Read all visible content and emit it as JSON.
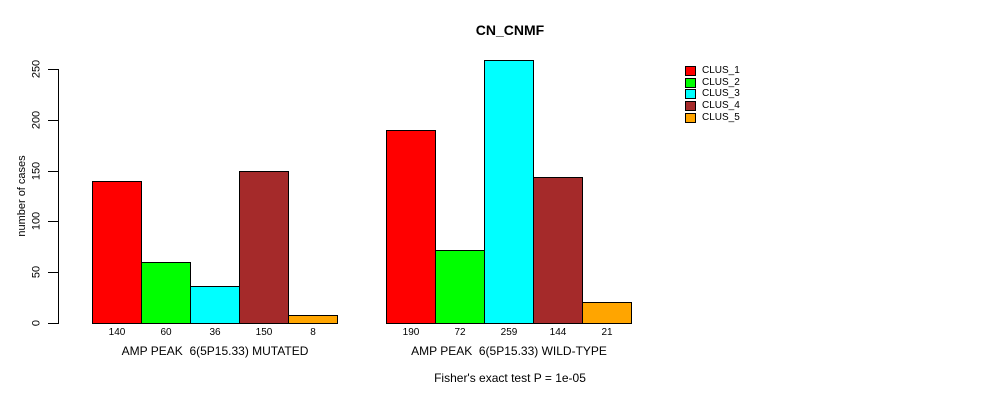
{
  "title": "CN_CNMF",
  "subtitle": "Fisher's exact test P = 1e-05",
  "y_axis": {
    "label": "number of cases",
    "ticks": [
      0,
      50,
      100,
      150,
      200,
      250
    ],
    "max": 250
  },
  "legend": {
    "position": "right",
    "entries": [
      {
        "label": "CLUS_1",
        "color": "#FF0000"
      },
      {
        "label": "CLUS_2",
        "color": "#00FF00"
      },
      {
        "label": "CLUS_3",
        "color": "#00FFFF"
      },
      {
        "label": "CLUS_4",
        "color": "#A52A2A"
      },
      {
        "label": "CLUS_5",
        "color": "#FFA500"
      }
    ]
  },
  "chart_data": {
    "type": "bar",
    "title": "CN_CNMF",
    "xlabel": "",
    "ylabel": "number of cases",
    "ylim": [
      0,
      250
    ],
    "grid": false,
    "legend_position": "right",
    "categories": [
      "AMP PEAK  6(5P15.33) MUTATED",
      "AMP PEAK  6(5P15.33) WILD-TYPE"
    ],
    "series": [
      {
        "name": "CLUS_1",
        "color": "#FF0000",
        "values": [
          140,
          190
        ]
      },
      {
        "name": "CLUS_2",
        "color": "#00FF00",
        "values": [
          60,
          72
        ]
      },
      {
        "name": "CLUS_3",
        "color": "#00FFFF",
        "values": [
          36,
          259
        ]
      },
      {
        "name": "CLUS_4",
        "color": "#A52A2A",
        "values": [
          150,
          144
        ]
      },
      {
        "name": "CLUS_5",
        "color": "#FFA500",
        "values": [
          8,
          21
        ]
      }
    ],
    "bar_value_labels": true,
    "annotation": "Fisher's exact test P = 1e-05"
  }
}
